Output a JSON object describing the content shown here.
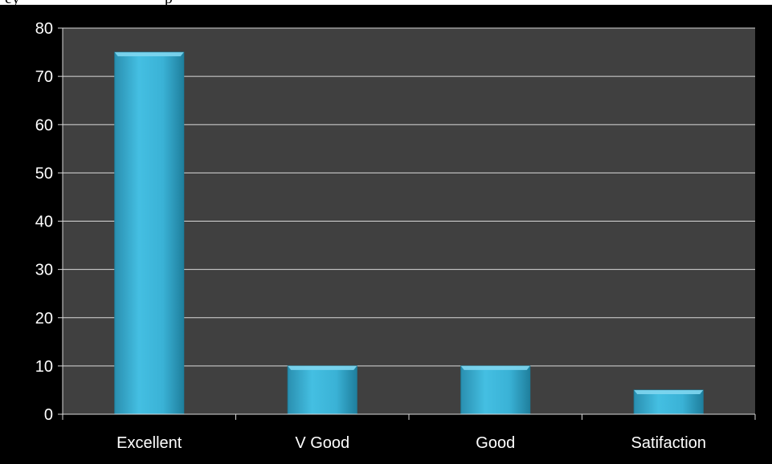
{
  "page": {
    "heading_fragment": "ey                                    p"
  },
  "colors": {
    "page_background": "#ffffff",
    "chart_background": "#000000",
    "plot_background": "#404040",
    "gridline": "#d9d9d9",
    "axis_text": "#ffffff",
    "bar_fill": "#3cb4d8",
    "bar_highlight": "#7fd6ef",
    "bar_shadow": "#1d7e9c"
  },
  "chart_data": {
    "type": "bar",
    "categories": [
      "Excellent",
      "V Good",
      "Good",
      "Satifaction"
    ],
    "values": [
      75,
      10,
      10,
      5
    ],
    "y_ticks": [
      "0",
      "10",
      "20",
      "30",
      "40",
      "50",
      "60",
      "70",
      "80"
    ],
    "ylim": [
      0,
      80
    ],
    "grid": true,
    "legend": "none"
  }
}
